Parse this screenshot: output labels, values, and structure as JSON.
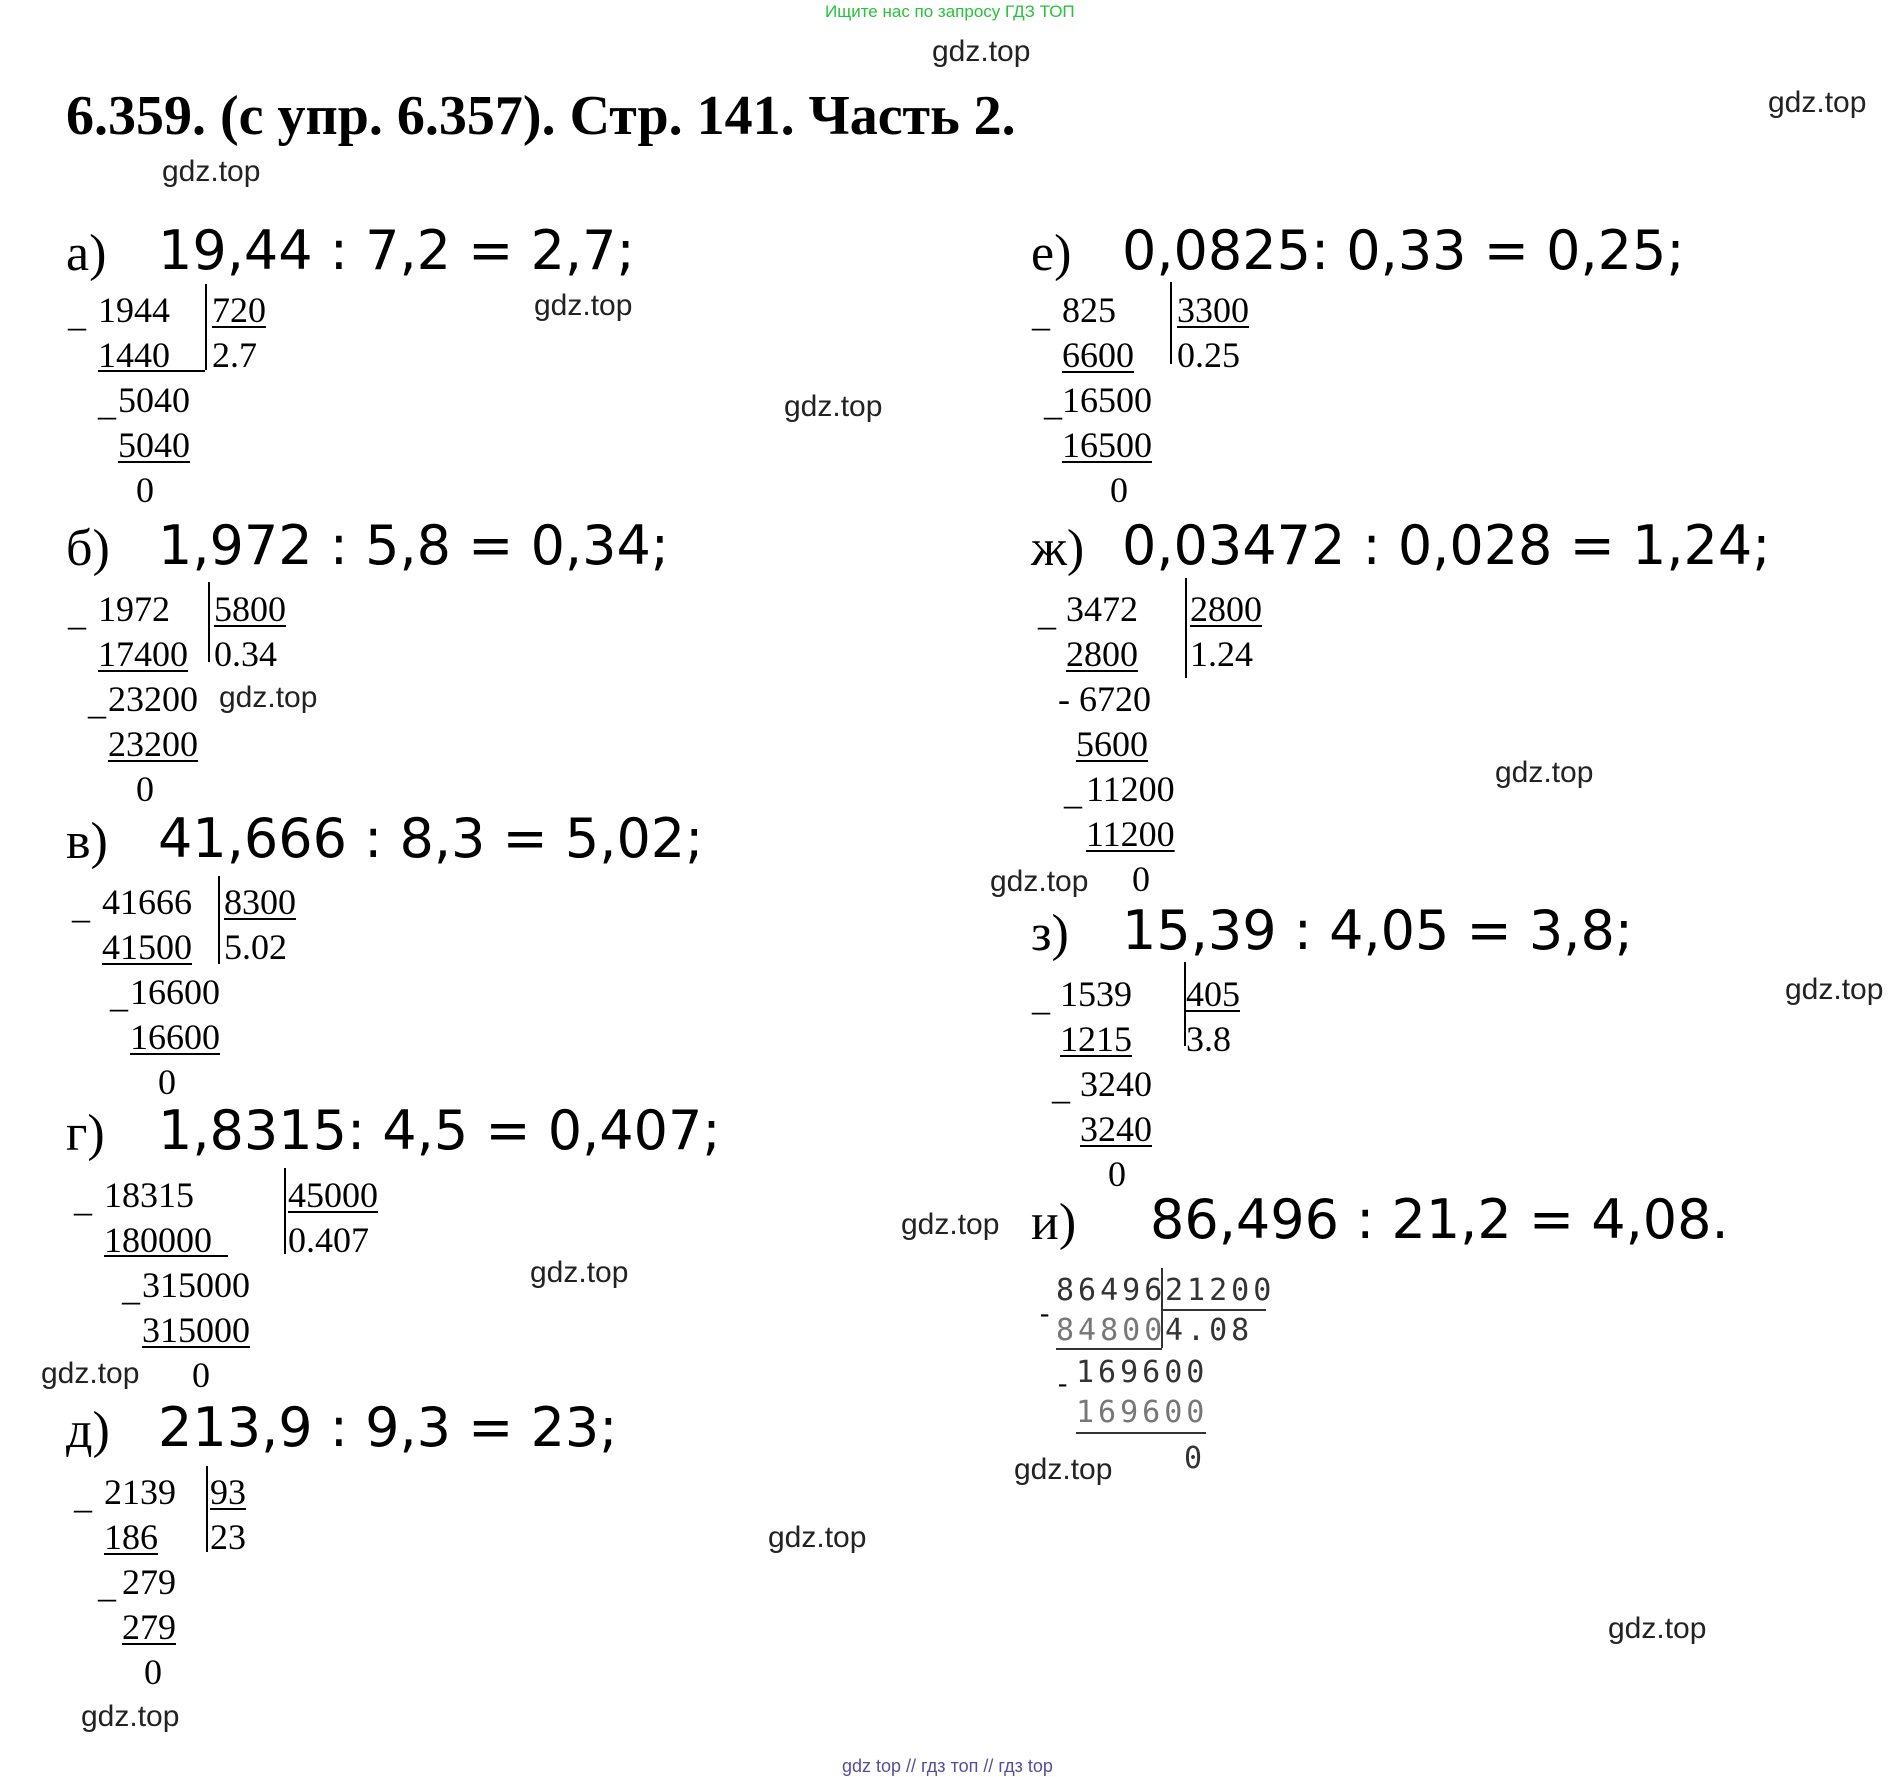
{
  "top_banner": "Ищите нас по запросу ГДЗ ТОП",
  "footer": "gdz top  //  гдз топ  //  гдз top",
  "title": "6.359.  (с упр. 6.357). Стр. 141. Часть 2.",
  "watermark": "gdz.top",
  "problems": {
    "a": {
      "letter": "а)",
      "expression": "19,44 :  7,2  =  2,7;",
      "division": {
        "dividend": "1944",
        "divisor": "720",
        "sub1": "1440",
        "quotient": "2.7",
        "rem1": "5040",
        "sub2": "5040",
        "rem_final": "0"
      }
    },
    "b": {
      "letter": "б)",
      "expression": "1,972 :  5,8  =  0,34;",
      "division": {
        "dividend": "1972",
        "divisor": "5800",
        "sub1": "17400",
        "quotient": "0.34",
        "rem1": "23200",
        "sub2": "23200",
        "rem_final": "0"
      }
    },
    "v": {
      "letter": "в)",
      "expression": "41,666 :  8,3  =  5,02;",
      "division": {
        "dividend": "41666",
        "divisor": "8300",
        "sub1": "41500",
        "quotient": "5.02",
        "rem1": "16600",
        "sub2": "16600",
        "rem_final": "0"
      }
    },
    "g": {
      "letter": "г)",
      "expression": "1,8315: 4,5  =  0,407;",
      "division": {
        "dividend": "18315",
        "divisor": "45000",
        "sub1": "180000",
        "quotient": "0.407",
        "rem1": "315000",
        "sub2": "315000",
        "rem_final": "0"
      }
    },
    "d": {
      "letter": "д)",
      "expression": "213,9 : 9,3  =  23;",
      "division": {
        "dividend": "2139",
        "divisor": "93",
        "sub1": "186",
        "quotient": "23",
        "rem1": "279",
        "sub2": "279",
        "rem_final": "0"
      }
    },
    "e": {
      "letter": "е)",
      "expression": "0,0825: 0,33  =  0,25;",
      "division": {
        "dividend": "825",
        "divisor": "3300",
        "sub1": "6600",
        "quotient": "0.25",
        "rem1": "16500",
        "sub2": "16500",
        "rem_final": "0"
      }
    },
    "zh": {
      "letter": "ж)",
      "expression": "0,03472 :  0,028  =  1,24;",
      "division": {
        "dividend": "3472",
        "divisor": "2800",
        "sub1": "2800",
        "quotient": "1.24",
        "rem1": "- 6720",
        "sub2": "5600",
        "rem2": "11200",
        "sub3": "11200",
        "rem_final": "0"
      }
    },
    "z": {
      "letter": "з)",
      "expression": "15,39 :  4,05  =  3,8;",
      "division": {
        "dividend": "1539",
        "divisor": "405",
        "sub1": "1215",
        "quotient": "3.8",
        "rem1": "3240",
        "sub2": "3240",
        "rem_final": "0"
      }
    },
    "i": {
      "letter": "и)",
      "expression": "86,496 :  21,2  =  4,08.",
      "division": {
        "dividend": "86496",
        "divisor": "21200",
        "sub1": "84800",
        "quotient": "4.08",
        "rem1": "169600",
        "sub2": "169600",
        "rem_final": "0"
      }
    }
  }
}
